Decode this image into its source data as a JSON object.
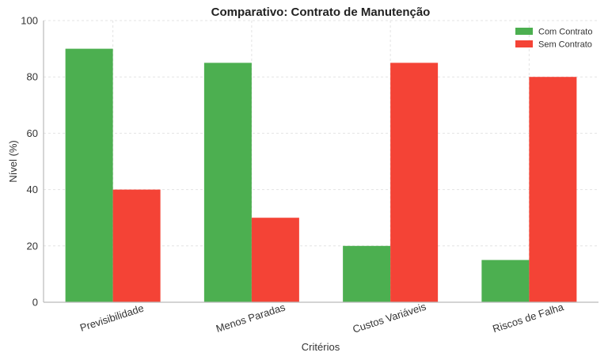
{
  "chart_data": {
    "type": "bar",
    "title": "Comparativo: Contrato de Manutenção",
    "xlabel": "Critérios",
    "ylabel": "Nível (%)",
    "ylim": [
      0,
      100
    ],
    "yticks": [
      0,
      20,
      40,
      60,
      80,
      100
    ],
    "categories": [
      "Previsibilidade",
      "Menos Paradas",
      "Custos Variáveis",
      "Riscos de Falha"
    ],
    "series": [
      {
        "name": "Com Contrato",
        "values": [
          90,
          85,
          20,
          15
        ],
        "color": "#4caf50"
      },
      {
        "name": "Sem Contrato",
        "values": [
          40,
          30,
          85,
          80
        ],
        "color": "#f44336"
      }
    ],
    "grid": true,
    "legend_position": "top-right"
  }
}
